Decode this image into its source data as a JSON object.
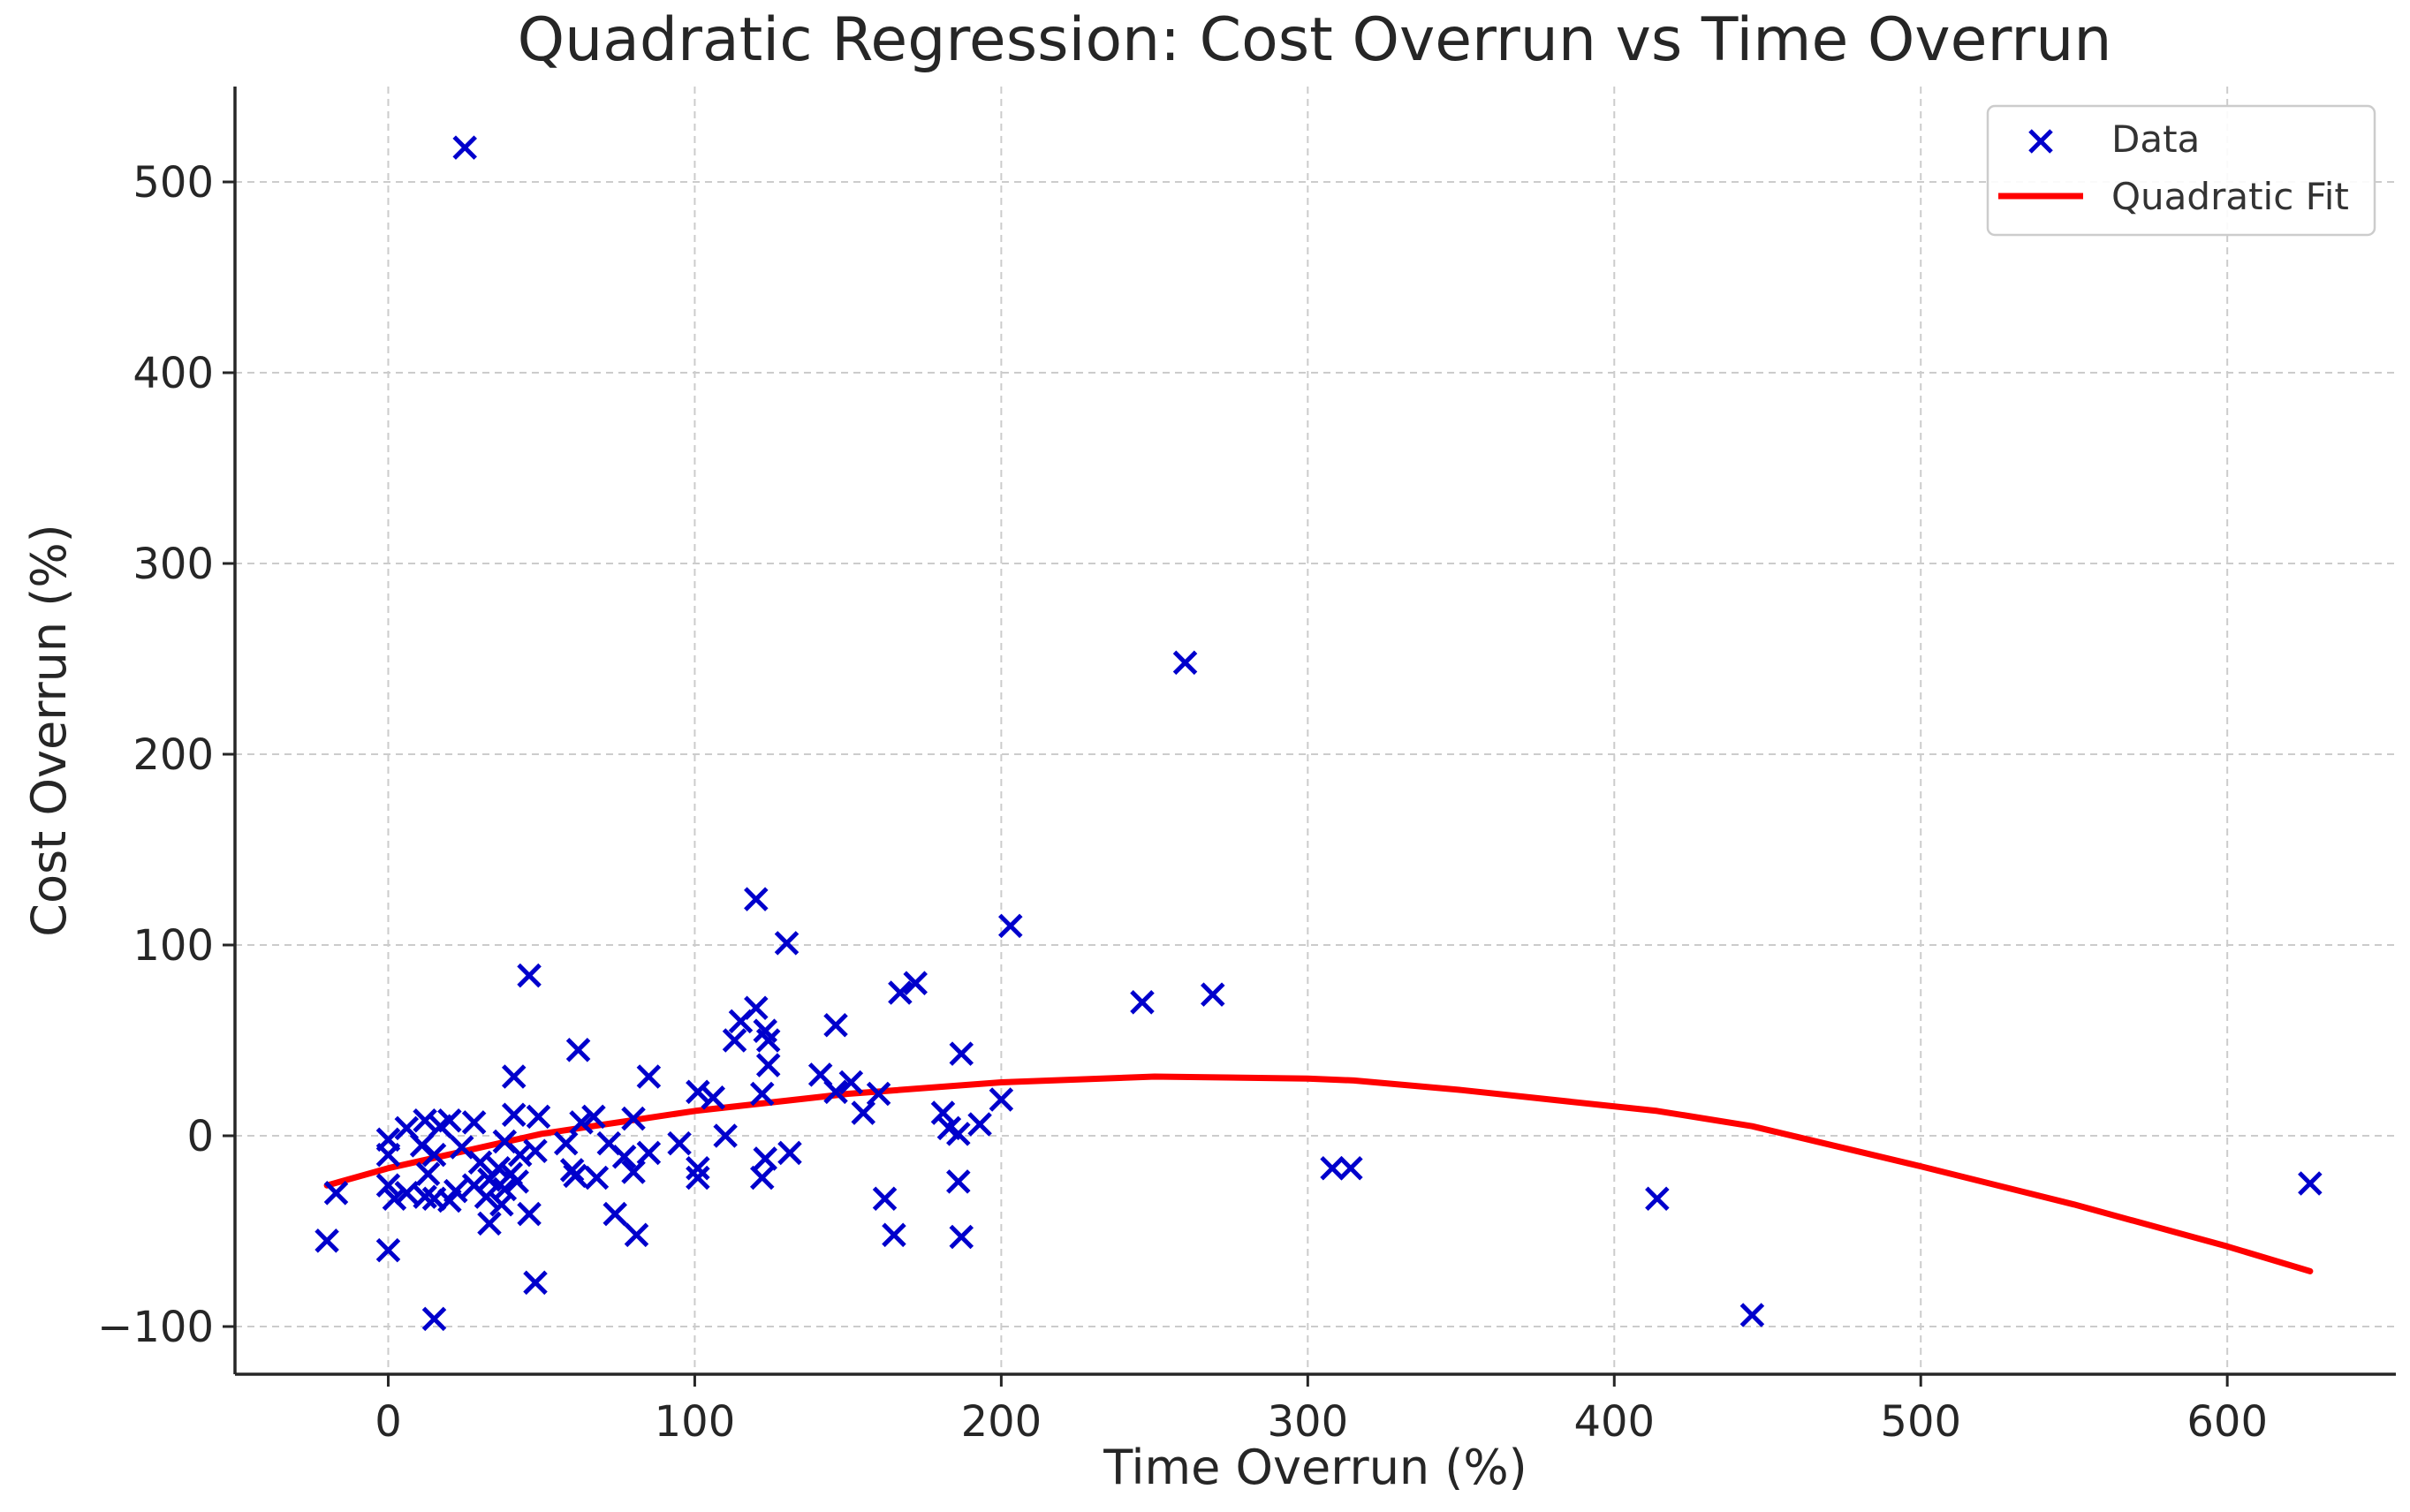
{
  "chart_data": {
    "type": "scatter",
    "title": "Quadratic Regression: Cost Overrun vs Time Overrun",
    "xlabel": "Time Overrun (%)",
    "ylabel": "Cost Overrun (%)",
    "xlim": [
      -50,
      655
    ],
    "ylim": [
      -125,
      550
    ],
    "xticks": [
      0,
      100,
      200,
      300,
      400,
      500,
      600
    ],
    "xtick_labels": [
      "0",
      "100",
      "200",
      "300",
      "400",
      "500",
      "600"
    ],
    "yticks": [
      -100,
      0,
      100,
      200,
      300,
      400,
      500
    ],
    "ytick_labels": [
      "−100",
      "0",
      "100",
      "200",
      "300",
      "400",
      "500"
    ],
    "grid": true,
    "legend_position": "top-right",
    "colors": {
      "data": "#0000cc",
      "fit": "#ff0000"
    },
    "series": [
      {
        "name": "Data",
        "type": "scatter",
        "marker": "x",
        "points": [
          [
            25,
            518
          ],
          [
            260,
            248
          ],
          [
            120,
            124
          ],
          [
            203,
            110
          ],
          [
            130,
            101
          ],
          [
            46,
            84
          ],
          [
            172,
            80
          ],
          [
            167,
            75
          ],
          [
            269,
            74
          ],
          [
            246,
            70
          ],
          [
            120,
            67
          ],
          [
            115,
            60
          ],
          [
            146,
            58
          ],
          [
            123,
            55
          ],
          [
            124,
            50
          ],
          [
            113,
            50
          ],
          [
            62,
            45
          ],
          [
            187,
            43
          ],
          [
            124,
            37
          ],
          [
            141,
            32
          ],
          [
            41,
            31
          ],
          [
            85,
            31
          ],
          [
            151,
            28
          ],
          [
            146,
            23
          ],
          [
            101,
            23
          ],
          [
            160,
            22
          ],
          [
            122,
            22
          ],
          [
            106,
            20
          ],
          [
            200,
            19
          ],
          [
            155,
            12
          ],
          [
            181,
            12
          ],
          [
            41,
            11
          ],
          [
            49,
            10
          ],
          [
            67,
            10
          ],
          [
            80,
            9
          ],
          [
            12,
            8
          ],
          [
            20,
            8
          ],
          [
            28,
            7
          ],
          [
            63,
            7
          ],
          [
            193,
            6
          ],
          [
            17,
            5
          ],
          [
            6,
            4
          ],
          [
            183,
            4
          ],
          [
            110,
            0
          ],
          [
            186,
            1
          ],
          [
            0,
            -2
          ],
          [
            38,
            -3
          ],
          [
            58,
            -4
          ],
          [
            72,
            -4
          ],
          [
            95,
            -4
          ],
          [
            11,
            -5
          ],
          [
            24,
            -6
          ],
          [
            48,
            -8
          ],
          [
            85,
            -9
          ],
          [
            131,
            -9
          ],
          [
            0,
            -10
          ],
          [
            15,
            -10
          ],
          [
            43,
            -10
          ],
          [
            77,
            -11
          ],
          [
            123,
            -12
          ],
          [
            30,
            -14
          ],
          [
            101,
            -17
          ],
          [
            36,
            -17
          ],
          [
            308,
            -17
          ],
          [
            314,
            -17
          ],
          [
            60,
            -18
          ],
          [
            80,
            -19
          ],
          [
            13,
            -20
          ],
          [
            40,
            -20
          ],
          [
            61,
            -21
          ],
          [
            101,
            -22
          ],
          [
            68,
            -22
          ],
          [
            122,
            -22
          ],
          [
            33,
            -23
          ],
          [
            42,
            -24
          ],
          [
            186,
            -24
          ],
          [
            627,
            -25
          ],
          [
            0,
            -26
          ],
          [
            28,
            -26
          ],
          [
            38,
            -28
          ],
          [
            22,
            -29
          ],
          [
            6,
            -30
          ],
          [
            -17,
            -30
          ],
          [
            12,
            -32
          ],
          [
            32,
            -32
          ],
          [
            2,
            -33
          ],
          [
            15,
            -33
          ],
          [
            162,
            -33
          ],
          [
            414,
            -33
          ],
          [
            20,
            -34
          ],
          [
            37,
            -36
          ],
          [
            46,
            -41
          ],
          [
            74,
            -41
          ],
          [
            33,
            -46
          ],
          [
            81,
            -52
          ],
          [
            165,
            -52
          ],
          [
            187,
            -53
          ],
          [
            -20,
            -55
          ],
          [
            0,
            -60
          ],
          [
            48,
            -77
          ],
          [
            445,
            -94
          ],
          [
            15,
            -96
          ]
        ]
      },
      {
        "name": "Quadratic Fit",
        "type": "line",
        "points": [
          [
            -20,
            -26
          ],
          [
            0,
            -17
          ],
          [
            50,
            1
          ],
          [
            100,
            13
          ],
          [
            150,
            22
          ],
          [
            200,
            28
          ],
          [
            250,
            31
          ],
          [
            300,
            30
          ],
          [
            315,
            29
          ],
          [
            350,
            24
          ],
          [
            414,
            13
          ],
          [
            445,
            5
          ],
          [
            500,
            -16
          ],
          [
            550,
            -36
          ],
          [
            600,
            -58
          ],
          [
            627,
            -71
          ]
        ]
      }
    ]
  }
}
